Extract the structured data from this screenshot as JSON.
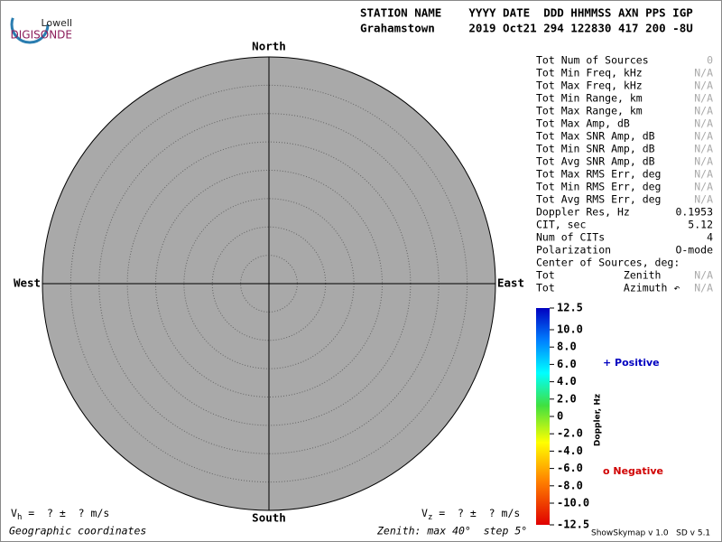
{
  "logo": {
    "line1": "Lowell",
    "line2": "DIGISONDE"
  },
  "header": {
    "labels": "STATION NAME    YYYY DATE  DDD HHMMSS AXN PPS IGP",
    "values": "Grahamstown     2019 Oct21 294 122830 417 200 -8U"
  },
  "compass": {
    "north": "North",
    "south": "South",
    "west": "West",
    "east": "East"
  },
  "stats": [
    [
      "Tot Num of Sources",
      "0"
    ],
    [
      "Tot Min Freq, kHz",
      "N/A"
    ],
    [
      "Tot Max Freq, kHz",
      "N/A"
    ],
    [
      "Tot Min Range, km",
      "N/A"
    ],
    [
      "Tot Max Range, km",
      "N/A"
    ],
    [
      "Tot Max Amp, dB",
      "N/A"
    ],
    [
      "Tot Max SNR Amp, dB",
      "N/A"
    ],
    [
      "Tot Min SNR Amp, dB",
      "N/A"
    ],
    [
      "Tot Avg SNR Amp, dB",
      "N/A"
    ],
    [
      "Tot Max RMS Err, deg",
      "N/A"
    ],
    [
      "Tot Min RMS Err, deg",
      "N/A"
    ],
    [
      "Tot Avg RMS Err, deg",
      "N/A"
    ],
    [
      "Doppler Res, Hz",
      "0.1953"
    ],
    [
      "CIT, sec",
      "5.12"
    ],
    [
      "Num of CITs",
      "4"
    ],
    [
      "Polarization",
      "O-mode"
    ],
    [
      "Center of Sources, deg:"
    ],
    [
      "Tot           Zenith",
      "N/A"
    ],
    [
      "Tot           Azimuth ↶",
      "N/A"
    ]
  ],
  "colorbar": {
    "title": "Doppler, Hz",
    "lim": [
      -12.5,
      12.5
    ],
    "ticks": [
      12.5,
      {
        "value": 10,
        "label": "10.0"
      },
      {
        "value": 8,
        "label": "8.0"
      },
      {
        "value": 6,
        "label": "6.0"
      },
      {
        "value": 4,
        "label": "4.0"
      },
      {
        "value": 2,
        "label": "2.0"
      },
      0,
      {
        "value": -2,
        "label": "-2.0"
      },
      {
        "value": -4,
        "label": "-4.0"
      },
      {
        "value": -6,
        "label": "-6.0"
      },
      {
        "value": -8,
        "label": "-8.0"
      },
      {
        "value": -10,
        "label": "-10.0"
      },
      -12.5
    ]
  },
  "legend": {
    "positive": "+ Positive",
    "negative": "o Negative"
  },
  "footer": {
    "vh": "V",
    "vh_sub": "h",
    "vh_rest": " =  ? ±  ? m/s",
    "vz": "V",
    "vz_sub": "z",
    "vz_rest": " =  ? ±  ? m/s",
    "coords": "Geographic coordinates",
    "zenith": "Zenith: max 40°  step 5°",
    "version": "ShowSkymap v 1.0   SD v 5.1"
  }
}
